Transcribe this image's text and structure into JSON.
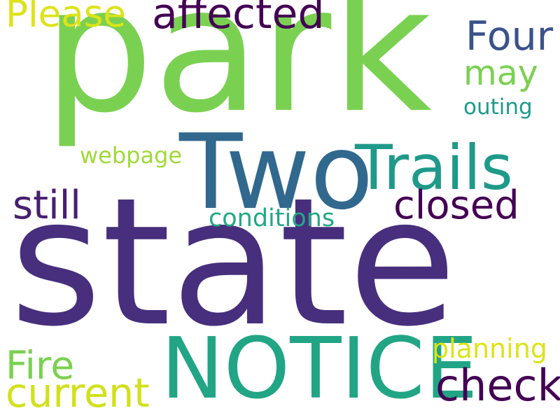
{
  "word_cloud": {
    "background": "#ffffff",
    "words": [
      {
        "text": "state",
        "color": "#472f7d"
      },
      {
        "text": "park",
        "color": "#7ad151"
      },
      {
        "text": "Two",
        "color": "#31688e"
      },
      {
        "text": "NOTICE",
        "color": "#21a585"
      },
      {
        "text": "Trails",
        "color": "#1f9a8a"
      },
      {
        "text": "affected",
        "color": "#440154"
      },
      {
        "text": "Please",
        "color": "#dde318"
      },
      {
        "text": "Four",
        "color": "#3b528b"
      },
      {
        "text": "may",
        "color": "#7ad151"
      },
      {
        "text": "outing",
        "color": "#1f9a8a"
      },
      {
        "text": "webpage",
        "color": "#a0da39"
      },
      {
        "text": "still",
        "color": "#481f70"
      },
      {
        "text": "closed",
        "color": "#440154"
      },
      {
        "text": "conditions",
        "color": "#22a884"
      },
      {
        "text": "Fire",
        "color": "#7ad151"
      },
      {
        "text": "current",
        "color": "#d0e11c"
      },
      {
        "text": "planning",
        "color": "#dde318"
      },
      {
        "text": "check",
        "color": "#440154"
      }
    ]
  }
}
